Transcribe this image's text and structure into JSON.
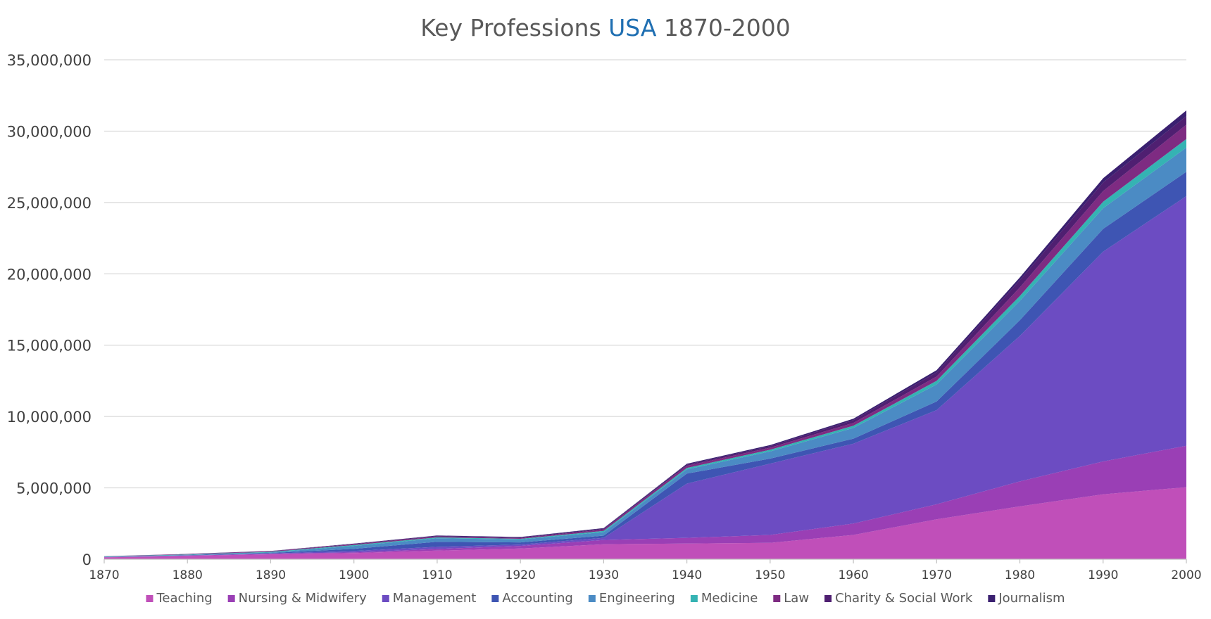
{
  "chart_data": {
    "type": "area",
    "stacked": true,
    "title": {
      "prefix": "Key Professions ",
      "highlight": "USA",
      "suffix": " 1870-2000",
      "highlight_color": "#1f6fb2"
    },
    "xlabel": "",
    "ylabel": "",
    "x": [
      1870,
      1880,
      1890,
      1900,
      1910,
      1920,
      1930,
      1940,
      1950,
      1960,
      1970,
      1980,
      1990,
      2000
    ],
    "ylim": [
      0,
      35000000
    ],
    "yticks": [
      0,
      5000000,
      10000000,
      15000000,
      20000000,
      25000000,
      30000000,
      35000000
    ],
    "ytick_labels": [
      "0",
      "5,000,000",
      "10,000,000",
      "15,000,000",
      "20,000,000",
      "25,000,000",
      "30,000,000",
      "35,000,000"
    ],
    "grid": true,
    "legend_position": "bottom",
    "series": [
      {
        "name": "Teaching",
        "color": "#c04fb9",
        "values": [
          130000,
          230000,
          350000,
          430000,
          600000,
          750000,
          1050000,
          1100000,
          1150000,
          1700000,
          2800000,
          3700000,
          4550000,
          5050000
        ]
      },
      {
        "name": "Nursing & Midwifery",
        "color": "#9a3fb5",
        "values": [
          10000,
          20000,
          30000,
          50000,
          120000,
          180000,
          300000,
          400000,
          550000,
          800000,
          1050000,
          1750000,
          2300000,
          2900000
        ]
      },
      {
        "name": "Management",
        "color": "#6c4cc2",
        "values": [
          10000,
          15000,
          20000,
          100000,
          150000,
          100000,
          150000,
          3800000,
          5000000,
          5600000,
          6600000,
          10200000,
          14700000,
          17500000
        ]
      },
      {
        "name": "Accounting",
        "color": "#3e55b3",
        "values": [
          10000,
          20000,
          40000,
          150000,
          350000,
          150000,
          150000,
          700000,
          350000,
          350000,
          600000,
          1100000,
          1600000,
          1700000
        ]
      },
      {
        "name": "Engineering",
        "color": "#4b8bc4",
        "values": [
          10000,
          20000,
          40000,
          200000,
          250000,
          200000,
          250000,
          300000,
          500000,
          750000,
          1200000,
          1350000,
          1450000,
          1700000
        ]
      },
      {
        "name": "Medicine",
        "color": "#35b3b3",
        "values": [
          20000,
          30000,
          40000,
          60000,
          60000,
          50000,
          80000,
          100000,
          120000,
          150000,
          250000,
          350000,
          450000,
          600000
        ]
      },
      {
        "name": "Law",
        "color": "#7e2b82",
        "values": [
          10000,
          20000,
          30000,
          60000,
          60000,
          50000,
          100000,
          150000,
          150000,
          200000,
          300000,
          600000,
          750000,
          1000000
        ]
      },
      {
        "name": "Charity & Social Work",
        "color": "#4f1f71",
        "values": [
          5000,
          10000,
          15000,
          30000,
          40000,
          50000,
          60000,
          80000,
          100000,
          200000,
          300000,
          500000,
          600000,
          600000
        ]
      },
      {
        "name": "Journalism",
        "color": "#3a2070",
        "values": [
          5000,
          10000,
          15000,
          20000,
          30000,
          30000,
          40000,
          60000,
          80000,
          100000,
          150000,
          200000,
          300000,
          400000
        ]
      }
    ]
  }
}
